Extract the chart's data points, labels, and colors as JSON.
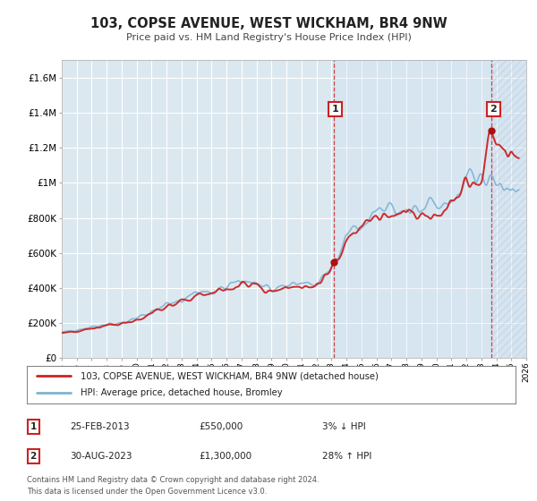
{
  "title": "103, COPSE AVENUE, WEST WICKHAM, BR4 9NW",
  "subtitle": "Price paid vs. HM Land Registry's House Price Index (HPI)",
  "ylim": [
    0,
    1700000
  ],
  "xlim": [
    1995,
    2026
  ],
  "plot_bg_color": "#dce8f0",
  "grid_color": "#ffffff",
  "legend_label_red": "103, COPSE AVENUE, WEST WICKHAM, BR4 9NW (detached house)",
  "legend_label_blue": "HPI: Average price, detached house, Bromley",
  "annotation1_date": "25-FEB-2013",
  "annotation1_price": "£550,000",
  "annotation1_hpi": "3% ↓ HPI",
  "annotation2_date": "30-AUG-2023",
  "annotation2_price": "£1,300,000",
  "annotation2_hpi": "28% ↑ HPI",
  "sale1_x": 2013.15,
  "sale1_y": 550000,
  "sale2_x": 2023.66,
  "sale2_y": 1300000,
  "vline1_x": 2013.15,
  "vline2_x": 2023.66,
  "footer": "Contains HM Land Registry data © Crown copyright and database right 2024.\nThis data is licensed under the Open Government Licence v3.0.",
  "yticks": [
    0,
    200000,
    400000,
    600000,
    800000,
    1000000,
    1200000,
    1400000,
    1600000
  ],
  "ytick_labels": [
    "£0",
    "£200K",
    "£400K",
    "£600K",
    "£800K",
    "£1M",
    "£1.2M",
    "£1.4M",
    "£1.6M"
  ],
  "xticks": [
    1995,
    1996,
    1997,
    1998,
    1999,
    2000,
    2001,
    2002,
    2003,
    2004,
    2005,
    2006,
    2007,
    2008,
    2009,
    2010,
    2011,
    2012,
    2013,
    2014,
    2015,
    2016,
    2017,
    2018,
    2019,
    2020,
    2021,
    2022,
    2023,
    2024,
    2025,
    2026
  ]
}
